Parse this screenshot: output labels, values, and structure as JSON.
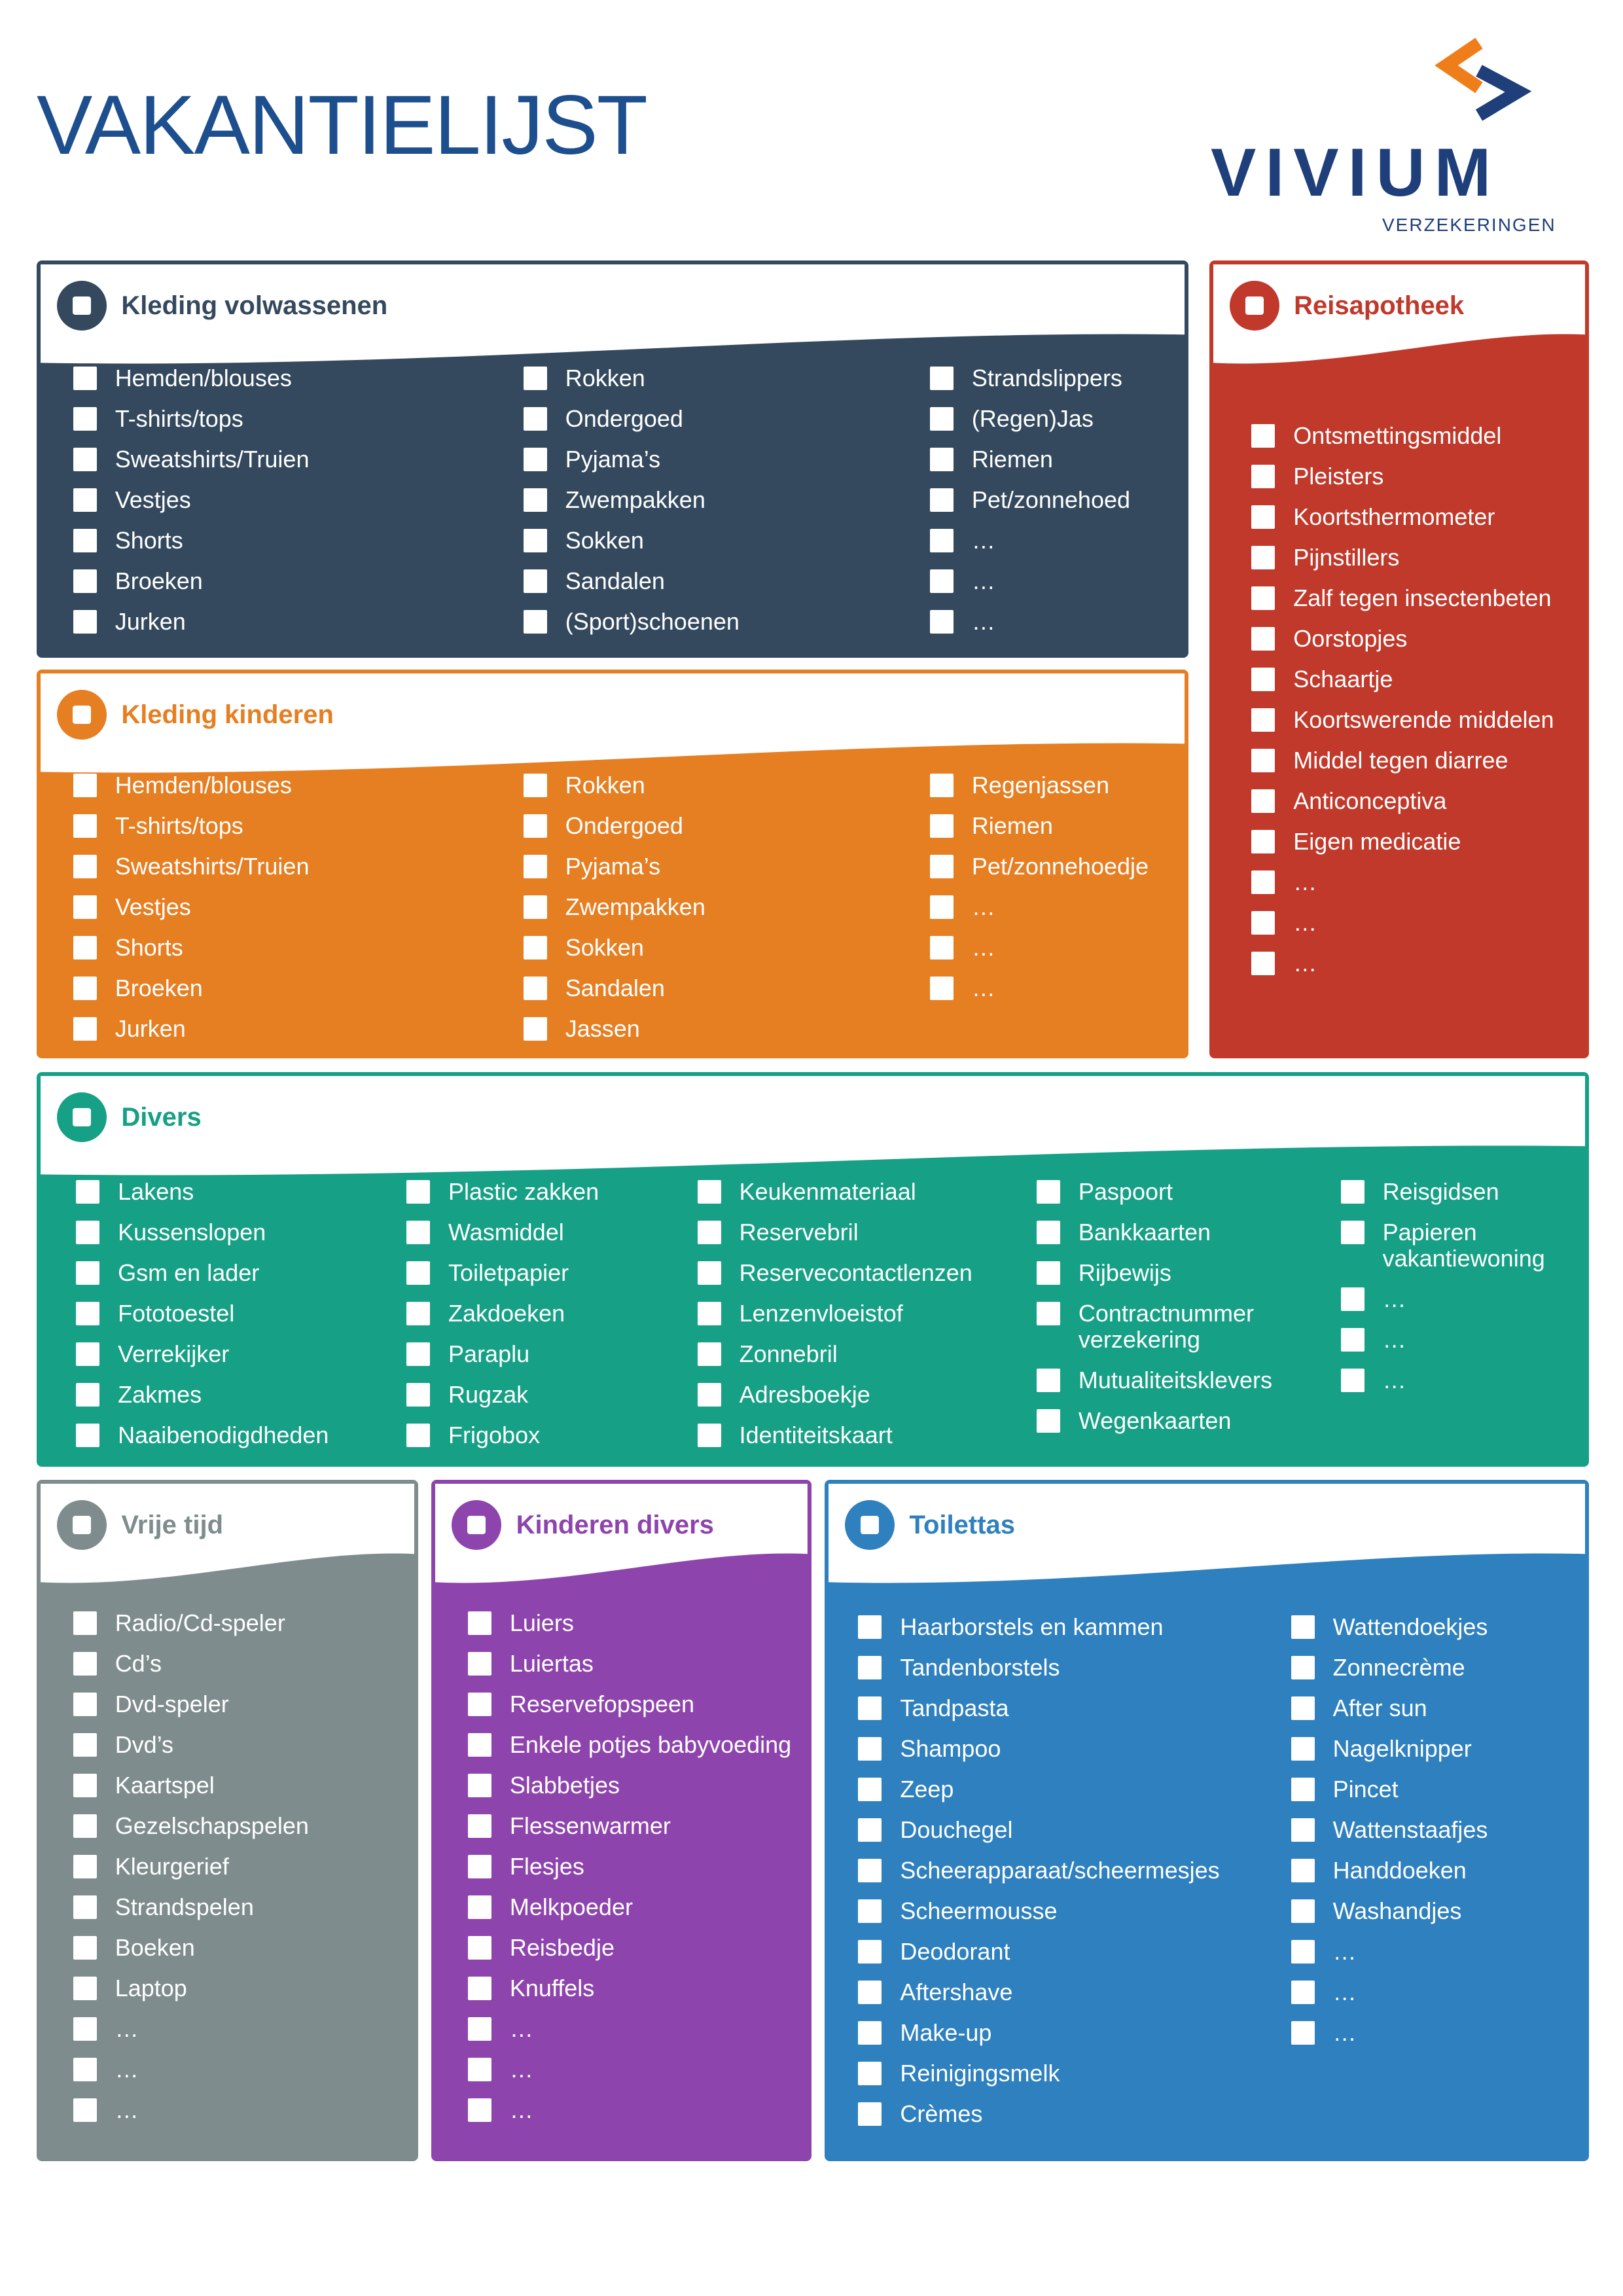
{
  "header": {
    "title": "VAKANTIELIJST",
    "logo": {
      "name": "VIVIUM",
      "subtitle": "VERZEKERINGEN"
    }
  },
  "sections": [
    {
      "title": "Kleding volwassenen",
      "columns": [
        [
          "Hemden/blouses",
          "T-shirts/tops",
          "Sweatshirts/Truien",
          "Vestjes",
          "Shorts",
          "Broeken",
          "Jurken"
        ],
        [
          "Rokken",
          "Ondergoed",
          "Pyjama’s",
          "Zwempakken",
          "Sokken",
          "Sandalen",
          "(Sport)schoenen"
        ],
        [
          "Strandslippers",
          "(Regen)Jas",
          "Riemen",
          "Pet/zonnehoed",
          "…",
          "…",
          "…"
        ]
      ]
    },
    {
      "title": "Reisapotheek",
      "columns": [
        [
          "Ontsmettingsmiddel",
          "Pleisters",
          "Koortsthermometer",
          "Pijnstillers",
          "Zalf tegen insectenbeten",
          "Oorstopjes",
          "Schaartje",
          "Koortswerende middelen",
          "Middel tegen diarree",
          "Anticonceptiva",
          "Eigen medicatie",
          "…",
          "…",
          "…"
        ]
      ]
    },
    {
      "title": "Kleding kinderen",
      "columns": [
        [
          "Hemden/blouses",
          "T-shirts/tops",
          "Sweatshirts/Truien",
          "Vestjes",
          "Shorts",
          "Broeken",
          "Jurken"
        ],
        [
          "Rokken",
          "Ondergoed",
          "Pyjama’s",
          "Zwempakken",
          "Sokken",
          "Sandalen",
          "Jassen"
        ],
        [
          "Regenjassen",
          "Riemen",
          "Pet/zonnehoedje",
          "…",
          "…",
          "…"
        ]
      ]
    },
    {
      "title": "Divers",
      "columns": [
        [
          "Lakens",
          "Kussenslopen",
          "Gsm en lader",
          "Fototoestel",
          "Verrekijker",
          "Zakmes",
          "Naaibenodigdheden"
        ],
        [
          "Plastic zakken",
          "Wasmiddel",
          "Toiletpapier",
          "Zakdoeken",
          "Paraplu",
          "Rugzak",
          "Frigobox"
        ],
        [
          "Keukenmateriaal",
          "Reservebril",
          "Reservecontactlenzen",
          "Lenzenvloeistof",
          "Zonnebril",
          "Adresboekje",
          "Identiteitskaart"
        ],
        [
          "Paspoort",
          "Bankkaarten",
          "Rijbewijs",
          "Contractnummer verzekering",
          "Mutualiteitsklevers",
          "Wegenkaarten"
        ],
        [
          "Reisgidsen",
          "Papieren vakantiewoning",
          "…",
          "…",
          "…"
        ]
      ]
    },
    {
      "title": "Vrije tijd",
      "columns": [
        [
          "Radio/Cd-speler",
          "Cd’s",
          "Dvd-speler",
          "Dvd’s",
          "Kaartspel",
          "Gezelschapspelen",
          "Kleurgerief",
          "Strandspelen",
          "Boeken",
          "Laptop",
          "…",
          "…",
          "…"
        ]
      ]
    },
    {
      "title": "Kinderen divers",
      "columns": [
        [
          "Luiers",
          "Luiertas",
          "Reservefopspeen",
          "Enkele potjes babyvoeding",
          "Slabbetjes",
          "Flessenwarmer",
          "Flesjes",
          "Melkpoeder",
          "Reisbedje",
          "Knuffels",
          "…",
          "…",
          "…"
        ]
      ]
    },
    {
      "title": "Toilettas",
      "columns": [
        [
          "Haarborstels en kammen",
          "Tandenborstels",
          "Tandpasta",
          "Shampoo",
          "Zeep",
          "Douchegel",
          "Scheerapparaat/scheermesjes",
          "Scheermousse",
          "Deodorant",
          "Aftershave",
          "Make-up",
          "Reinigingsmelk",
          "Crèmes"
        ],
        [
          "Wattendoekjes",
          "Zonnecrème",
          "After sun",
          "Nagelknipper",
          "Pincet",
          "Wattenstaafjes",
          "Handdoeken",
          "Washandjes",
          "…",
          "…",
          "…"
        ]
      ]
    }
  ]
}
